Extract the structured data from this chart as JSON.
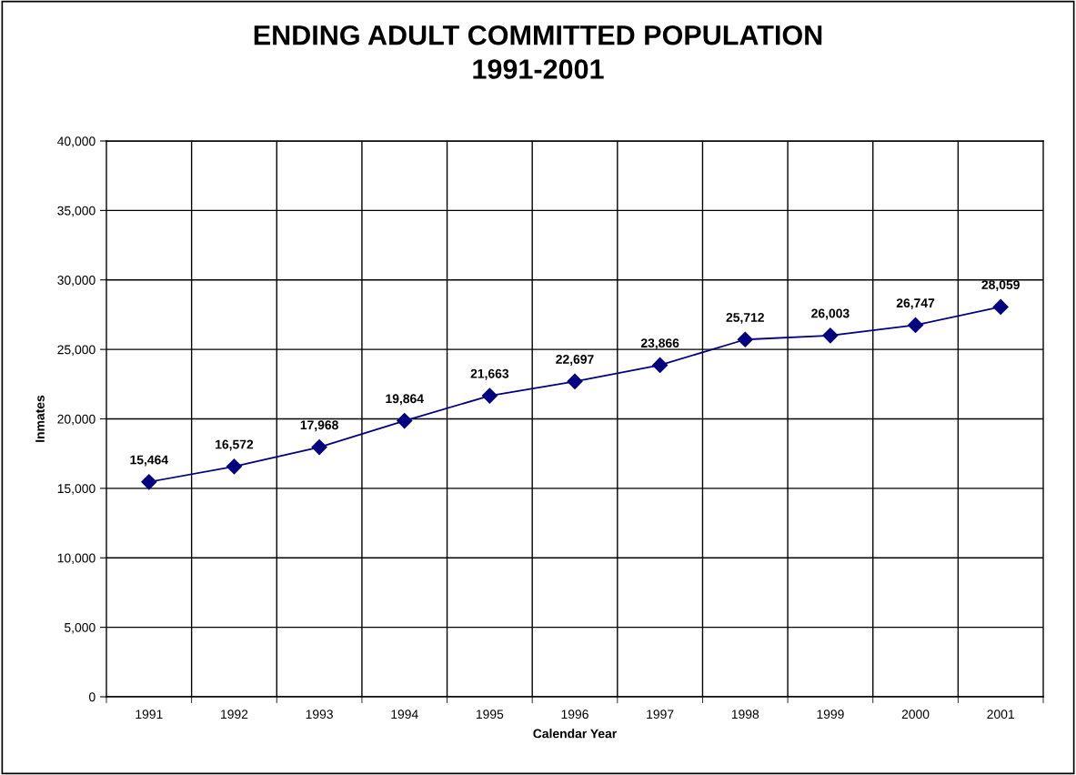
{
  "chart_data": {
    "type": "line",
    "title": "ENDING ADULT COMMITTED POPULATION\n1991-2001",
    "xlabel": "Calendar Year",
    "ylabel": "Inmates",
    "categories": [
      "1991",
      "1992",
      "1993",
      "1994",
      "1995",
      "1996",
      "1997",
      "1998",
      "1999",
      "2000",
      "2001"
    ],
    "series": [
      {
        "color": "#000080",
        "values": [
          15464,
          16572,
          17968,
          19864,
          21663,
          22697,
          23866,
          25712,
          26003,
          26747,
          28059
        ],
        "value_labels": [
          "15,464",
          "16,572",
          "17,968",
          "19,864",
          "21,663",
          "22,697",
          "23,866",
          "25,712",
          "26,003",
          "26,747",
          "28,059"
        ]
      }
    ],
    "ylim": [
      0,
      40000
    ],
    "yticks": [
      0,
      {
        "value": 5000,
        "label": "5,000"
      },
      {
        "value": 10000,
        "label": "10,000"
      },
      {
        "value": 15000,
        "label": "15,000"
      },
      {
        "value": 20000,
        "label": "20,000"
      },
      {
        "value": 25000,
        "label": "25,000"
      },
      {
        "value": 30000,
        "label": "30,000"
      },
      {
        "value": 35000,
        "label": "35,000"
      },
      {
        "value": 40000,
        "label": "40,000"
      }
    ],
    "grid": true,
    "marker": "diamond",
    "line_style": "solid",
    "legend": false
  }
}
